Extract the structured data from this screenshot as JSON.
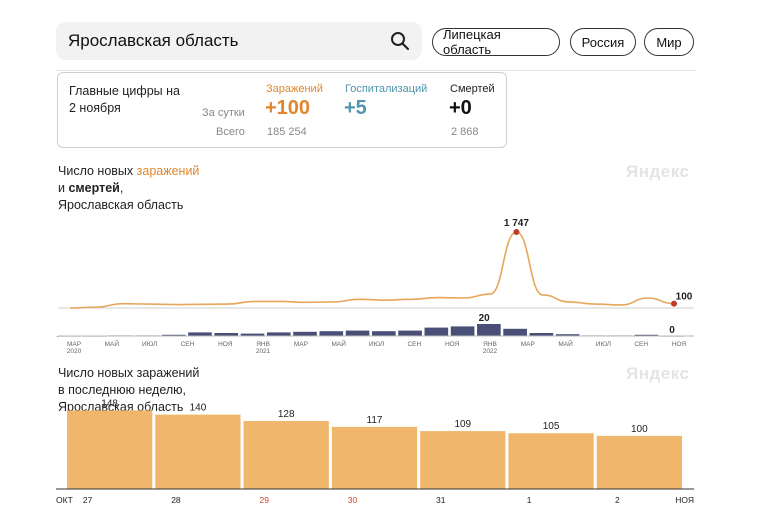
{
  "search": {
    "value": "Ярославская область"
  },
  "chips": [
    "Липецкая область",
    "Россия",
    "Мир"
  ],
  "summary": {
    "title_line1": "Главные цифры на",
    "title_line2": "2 ноября",
    "row_daily": "За сутки",
    "row_total": "Всего",
    "infections": {
      "label": "Заражений",
      "daily": "+100",
      "total": "185 254"
    },
    "hospitalizations": {
      "label": "Госпитализаций",
      "daily": "+5"
    },
    "deaths": {
      "label": "Смертей",
      "daily": "+0",
      "total": "2 868"
    }
  },
  "brand": "Яндекс",
  "chart1": {
    "caption_pre": "Число новых ",
    "caption_hl": "заражений",
    "caption_line2_pre": "и ",
    "caption_line2_bold": "смертей",
    "caption_line2_post": ",",
    "caption_line3": "Ярославская область"
  },
  "chart2": {
    "caption_line1": "Число новых заражений",
    "caption_line2": "в последнюю неделю,",
    "caption_line3": "Ярославская область"
  },
  "colors": {
    "infections": "#e8a65a",
    "deaths": "#4a4f77",
    "peak": "#c0392b",
    "bar": "#f0b66c"
  },
  "chart_data": [
    {
      "type": "line",
      "x_labels": [
        "МАР 2020",
        "МАЙ",
        "ИЮЛ",
        "СЕН",
        "НОЯ",
        "ЯНВ 2021",
        "МАР",
        "МАЙ",
        "ИЮЛ",
        "СЕН",
        "НОЯ",
        "ЯНВ 2022",
        "МАР",
        "МАЙ",
        "ИЮЛ",
        "СЕН",
        "НОЯ"
      ],
      "series": [
        {
          "values": [
            0,
            20,
            100,
            90,
            80,
            85,
            90,
            150,
            150,
            130,
            140,
            200,
            180,
            200,
            240,
            230,
            320,
            1747,
            300,
            140,
            90,
            70,
            230,
            100
          ]
        },
        {
          "values": [
            0,
            0,
            1,
            1,
            2,
            6,
            5,
            4,
            6,
            7,
            8,
            9,
            8,
            9,
            14,
            16,
            20,
            12,
            5,
            3,
            1,
            1,
            2,
            0
          ]
        }
      ],
      "labels": {
        "peak_infections": "1 747",
        "last_infections": "100",
        "peak_deaths": "20",
        "last_deaths": "0"
      }
    },
    {
      "type": "bar",
      "categories": [
        "27",
        "28",
        "29",
        "30",
        "31",
        "1",
        "2"
      ],
      "values": [
        148,
        140,
        128,
        117,
        109,
        105,
        100
      ],
      "weekend_days": [
        "29",
        "30"
      ],
      "month_start": "ОКТ",
      "month_end": "НОЯ",
      "ylim": [
        0,
        160
      ]
    }
  ]
}
